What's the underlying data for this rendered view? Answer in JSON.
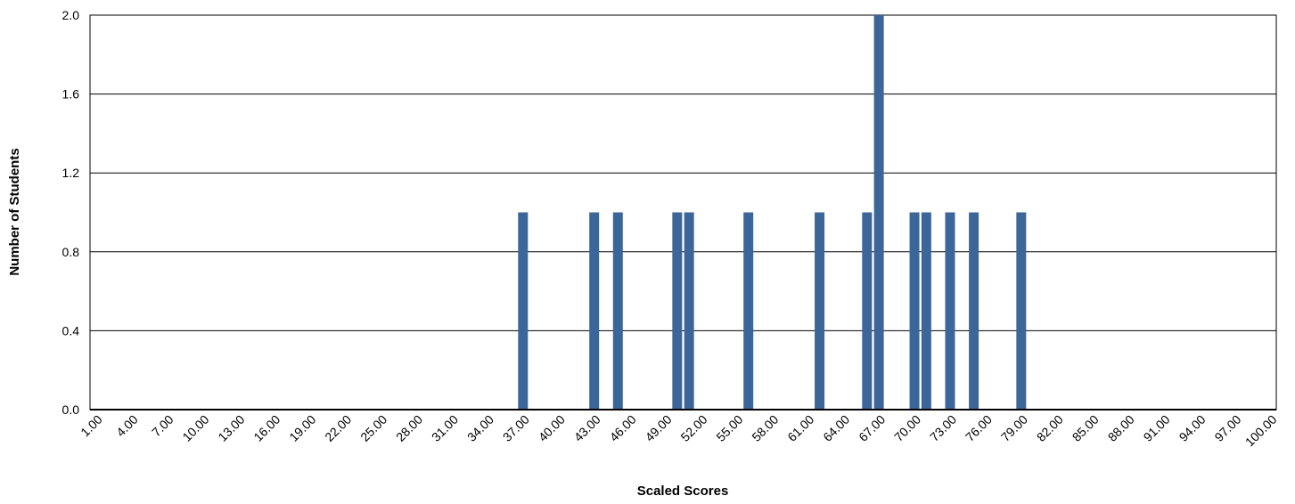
{
  "chart_data": {
    "type": "bar",
    "title": "",
    "xlabel": "Scaled Scores",
    "ylabel": "Number of Students",
    "ylim": [
      0,
      2
    ],
    "y_ticks": [
      "0.0",
      "0.4",
      "0.8",
      "1.2",
      "1.6",
      "2.0"
    ],
    "grid": true,
    "x_range": [
      1,
      100
    ],
    "x_tick_labels": [
      "1.00",
      "4.00",
      "7.00",
      "10.00",
      "13.00",
      "16.00",
      "19.00",
      "22.00",
      "25.00",
      "28.00",
      "31.00",
      "34.00",
      "37.00",
      "40.00",
      "43.00",
      "46.00",
      "49.00",
      "52.00",
      "55.00",
      "58.00",
      "61.00",
      "64.00",
      "67.00",
      "70.00",
      "73.00",
      "76.00",
      "79.00",
      "82.00",
      "85.00",
      "88.00",
      "91.00",
      "94.00",
      "97.00",
      "100.00"
    ],
    "series": [
      {
        "color": "#3c6699",
        "points": [
          {
            "x": 37,
            "y": 1
          },
          {
            "x": 43,
            "y": 1
          },
          {
            "x": 45,
            "y": 1
          },
          {
            "x": 50,
            "y": 1
          },
          {
            "x": 51,
            "y": 1
          },
          {
            "x": 56,
            "y": 1
          },
          {
            "x": 62,
            "y": 1
          },
          {
            "x": 66,
            "y": 1
          },
          {
            "x": 67,
            "y": 2
          },
          {
            "x": 70,
            "y": 1
          },
          {
            "x": 71,
            "y": 1
          },
          {
            "x": 73,
            "y": 1
          },
          {
            "x": 75,
            "y": 1
          },
          {
            "x": 79,
            "y": 1
          }
        ]
      }
    ]
  }
}
